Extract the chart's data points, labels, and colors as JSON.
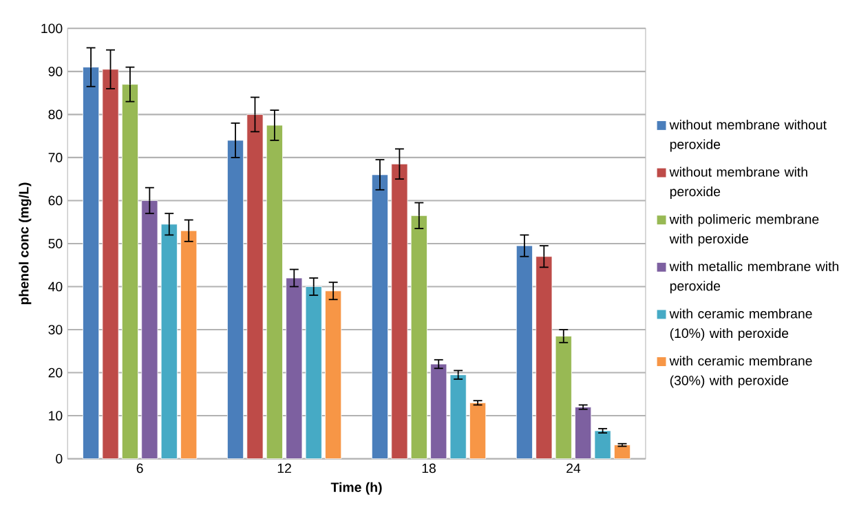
{
  "chart_data": {
    "type": "bar",
    "xlabel": "Time (h)",
    "ylabel": "phenol conc (mg/L)",
    "categories": [
      "6",
      "12",
      "18",
      "24"
    ],
    "ylim": [
      0,
      100
    ],
    "yticks": [
      0,
      10,
      20,
      30,
      40,
      50,
      60,
      70,
      80,
      90,
      100
    ],
    "grid": "y",
    "legend": "right",
    "series": [
      {
        "name": "without membrane without peroxide",
        "color": "#4a7ebb",
        "values": [
          91,
          74,
          66,
          49.5
        ],
        "errors": [
          4.5,
          4,
          3.5,
          2.5
        ]
      },
      {
        "name": "without membrane with peroxide",
        "color": "#be4b48",
        "values": [
          90.5,
          80,
          68.5,
          47
        ],
        "errors": [
          4.5,
          4,
          3.5,
          2.5
        ]
      },
      {
        "name": "with polimeric membrane with peroxide",
        "color": "#98b954",
        "values": [
          87,
          77.5,
          56.5,
          28.5
        ],
        "errors": [
          4,
          3.5,
          3,
          1.5
        ]
      },
      {
        "name": "with metallic membrane with peroxide",
        "color": "#7d60a0",
        "values": [
          60,
          42,
          22,
          12
        ],
        "errors": [
          3,
          2,
          1,
          0.5
        ]
      },
      {
        "name": "with ceramic membrane (10%) with peroxide",
        "color": "#46aac5",
        "values": [
          54.5,
          40,
          19.5,
          6.5
        ],
        "errors": [
          2.5,
          2,
          1,
          0.5
        ]
      },
      {
        "name": "with ceramic membrane (30%) with peroxide",
        "color": "#f79646",
        "values": [
          53,
          39,
          13,
          3.2
        ],
        "errors": [
          2.5,
          2,
          0.5,
          0.3
        ]
      }
    ]
  }
}
